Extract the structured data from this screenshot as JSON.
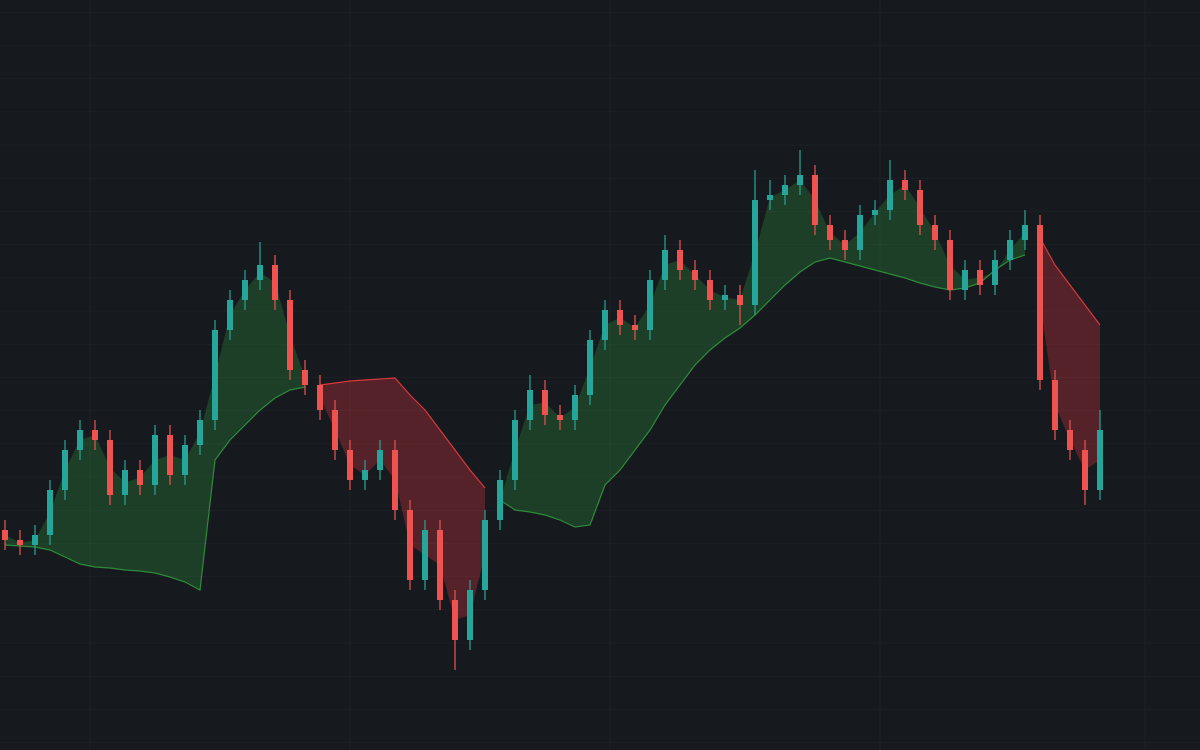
{
  "chart_data": {
    "type": "candlestick",
    "ylim": [
      0,
      750
    ],
    "up_color": "#26a69a",
    "down_color": "#ef5350",
    "open": [
      220,
      210,
      205,
      215,
      260,
      300,
      320,
      310,
      255,
      280,
      265,
      315,
      275,
      305,
      330,
      420,
      450,
      470,
      485,
      450,
      380,
      365,
      340,
      300,
      270,
      280,
      300,
      240,
      170,
      220,
      150,
      110,
      160,
      230,
      270,
      330,
      360,
      335,
      330,
      355,
      410,
      440,
      425,
      420,
      470,
      500,
      480,
      470,
      450,
      455,
      445,
      550,
      555,
      565,
      575,
      525,
      510,
      500,
      535,
      540,
      570,
      560,
      525,
      510,
      460,
      480,
      465,
      490,
      510,
      525,
      370,
      320,
      300,
      260
    ],
    "high": [
      230,
      220,
      225,
      270,
      310,
      330,
      330,
      320,
      290,
      290,
      325,
      325,
      315,
      340,
      430,
      460,
      480,
      508,
      495,
      460,
      390,
      375,
      350,
      310,
      290,
      310,
      310,
      250,
      230,
      230,
      160,
      170,
      240,
      280,
      340,
      375,
      370,
      345,
      365,
      420,
      450,
      450,
      435,
      480,
      515,
      510,
      490,
      480,
      465,
      465,
      580,
      570,
      575,
      600,
      585,
      535,
      520,
      545,
      550,
      590,
      580,
      570,
      535,
      520,
      490,
      490,
      500,
      520,
      540,
      535,
      380,
      330,
      310,
      340
    ],
    "low": [
      200,
      195,
      195,
      205,
      250,
      290,
      300,
      245,
      245,
      255,
      255,
      265,
      265,
      295,
      320,
      410,
      440,
      460,
      440,
      370,
      355,
      330,
      290,
      260,
      260,
      270,
      230,
      160,
      160,
      140,
      80,
      100,
      150,
      220,
      260,
      320,
      325,
      320,
      320,
      345,
      400,
      415,
      410,
      410,
      460,
      470,
      460,
      440,
      440,
      425,
      435,
      540,
      545,
      555,
      515,
      500,
      490,
      490,
      525,
      530,
      550,
      515,
      500,
      450,
      450,
      455,
      455,
      480,
      500,
      360,
      310,
      290,
      245,
      250
    ],
    "close": [
      210,
      205,
      215,
      260,
      300,
      320,
      310,
      255,
      280,
      265,
      315,
      275,
      305,
      330,
      420,
      450,
      470,
      485,
      450,
      380,
      365,
      340,
      300,
      270,
      280,
      300,
      240,
      170,
      220,
      150,
      110,
      160,
      230,
      270,
      330,
      360,
      335,
      330,
      355,
      410,
      440,
      425,
      420,
      470,
      500,
      480,
      470,
      450,
      455,
      445,
      550,
      555,
      565,
      575,
      525,
      510,
      500,
      535,
      540,
      570,
      560,
      525,
      510,
      460,
      480,
      465,
      490,
      510,
      525,
      370,
      320,
      300,
      260,
      320
    ],
    "series": [
      {
        "color": "#2e8b3a",
        "values": [
          205,
          204,
          203,
          200,
          193,
          186,
          183,
          182,
          180,
          179,
          177,
          173,
          168,
          160,
          290,
          310,
          325,
          340,
          352,
          360,
          363,
          null,
          null,
          null,
          null,
          null,
          null,
          null,
          null,
          null,
          null,
          null,
          null,
          250,
          240,
          238,
          235,
          230,
          223,
          225,
          265,
          280,
          300,
          320,
          345,
          365,
          385,
          400,
          412,
          422,
          435,
          450,
          465,
          478,
          488,
          492,
          488,
          484,
          480,
          476,
          472,
          467,
          463,
          460,
          462,
          467,
          480,
          490,
          495,
          null,
          null,
          null,
          null,
          null
        ]
      },
      {
        "color": "#d9363e",
        "values": [
          null,
          null,
          null,
          null,
          null,
          null,
          null,
          null,
          null,
          null,
          null,
          null,
          null,
          null,
          null,
          null,
          null,
          null,
          null,
          null,
          null,
          365,
          367,
          369,
          370,
          371,
          372,
          355,
          340,
          320,
          300,
          280,
          262,
          null,
          null,
          null,
          null,
          null,
          null,
          null,
          null,
          null,
          null,
          null,
          null,
          null,
          null,
          null,
          null,
          null,
          null,
          null,
          null,
          null,
          null,
          null,
          null,
          null,
          null,
          null,
          null,
          null,
          null,
          null,
          null,
          null,
          null,
          null,
          null,
          512,
          485,
          465,
          445,
          425
        ]
      }
    ]
  }
}
